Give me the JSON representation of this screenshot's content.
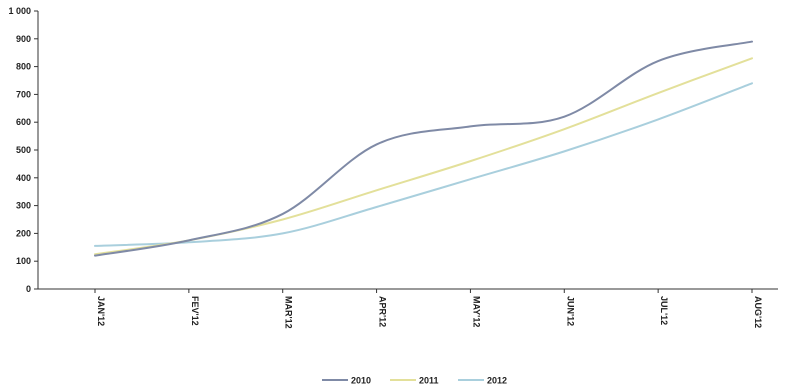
{
  "chart_data": {
    "type": "line",
    "categories": [
      "JAN'12",
      "FEV'12",
      "MAR'12",
      "APR'12",
      "MAY'12",
      "JUN'12",
      "JUL'12",
      "AUG'12"
    ],
    "series": [
      {
        "name": "2010",
        "color": "#7f8aa6",
        "values": [
          120,
          175,
          270,
          520,
          585,
          620,
          820,
          890
        ]
      },
      {
        "name": "2011",
        "color": "#e3e09a",
        "values": [
          125,
          175,
          250,
          355,
          460,
          575,
          705,
          830
        ]
      },
      {
        "name": "2012",
        "color": "#a9cfdd",
        "values": [
          155,
          168,
          200,
          295,
          395,
          495,
          610,
          740
        ]
      }
    ],
    "yticks": [
      "0",
      "100",
      "200",
      "300",
      "400",
      "500",
      "600",
      "700",
      "800",
      "900",
      "1 000"
    ],
    "ylim": [
      0,
      1000
    ],
    "grid": false,
    "legend_position": "bottom-center",
    "title": "",
    "xlabel": "",
    "ylabel": ""
  }
}
